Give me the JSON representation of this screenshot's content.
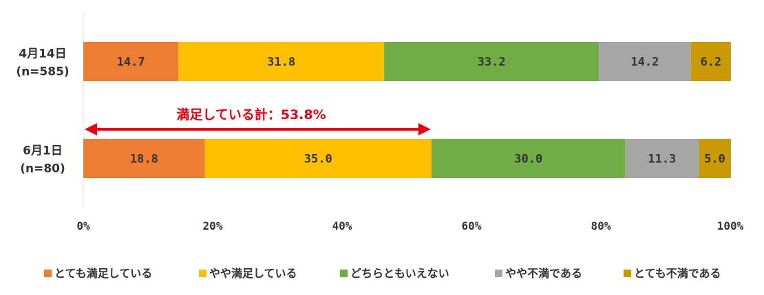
{
  "chart_data": {
    "type": "bar",
    "orientation": "horizontal",
    "stacked": true,
    "categories": [
      {
        "label1": "4月14日",
        "label2": "(n=585)"
      },
      {
        "label1": "6月1日",
        "label2": "(n=80)"
      }
    ],
    "series": [
      {
        "name": "とても満足している",
        "color": "#ed7d31",
        "values": [
          14.7,
          18.8
        ]
      },
      {
        "name": "やや満足している",
        "color": "#ffc000",
        "values": [
          31.8,
          35.0
        ]
      },
      {
        "name": "どちらともいえない",
        "color": "#70ad47",
        "values": [
          33.2,
          30.0
        ]
      },
      {
        "name": "やや不満である",
        "color": "#a5a5a5",
        "values": [
          14.2,
          11.3
        ]
      },
      {
        "name": "とても不満である",
        "color": "#c99a06",
        "values": [
          6.2,
          5.0
        ]
      }
    ],
    "xlim": [
      0,
      100
    ],
    "xticks": [
      "0%",
      "20%",
      "40%",
      "60%",
      "80%",
      "100%"
    ],
    "legend_position": "bottom",
    "annotation": {
      "text": "満足している計：53.8%",
      "from": 0,
      "to": 53.8,
      "color": "#e60012"
    }
  }
}
